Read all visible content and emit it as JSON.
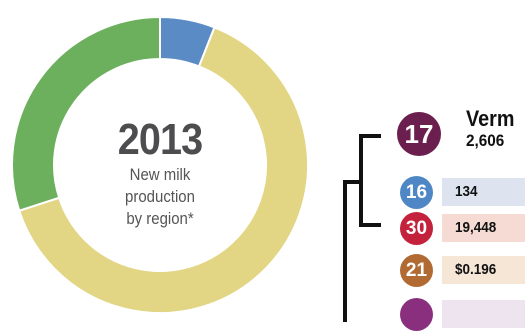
{
  "chart_data": {
    "type": "pie",
    "title": "2013",
    "subtitle": [
      "New milk",
      "production",
      "by region*"
    ],
    "slices": [
      {
        "value": 6,
        "color": "#5b8bc5"
      },
      {
        "value": 64,
        "color": "#e2d584"
      },
      {
        "value": 30,
        "color": "#6caf5c"
      }
    ]
  },
  "legend": {
    "vermont": {
      "number": "17",
      "name": "Verm",
      "value": "2,606",
      "color": "#6b1f4e"
    },
    "rows": [
      {
        "number": "16",
        "value": "134",
        "circle_color": "#4f86c6",
        "band_color": "#dde4f0"
      },
      {
        "number": "30",
        "value": "19,448",
        "circle_color": "#c3213c",
        "band_color": "#f5dbd3"
      },
      {
        "number": "21",
        "value": "$0.196",
        "circle_color": "#b26a33",
        "band_color": "#f6e6d6"
      },
      {
        "number": "",
        "value": "",
        "circle_color": "#8a2f7e",
        "band_color": "#ede4ef"
      }
    ]
  }
}
